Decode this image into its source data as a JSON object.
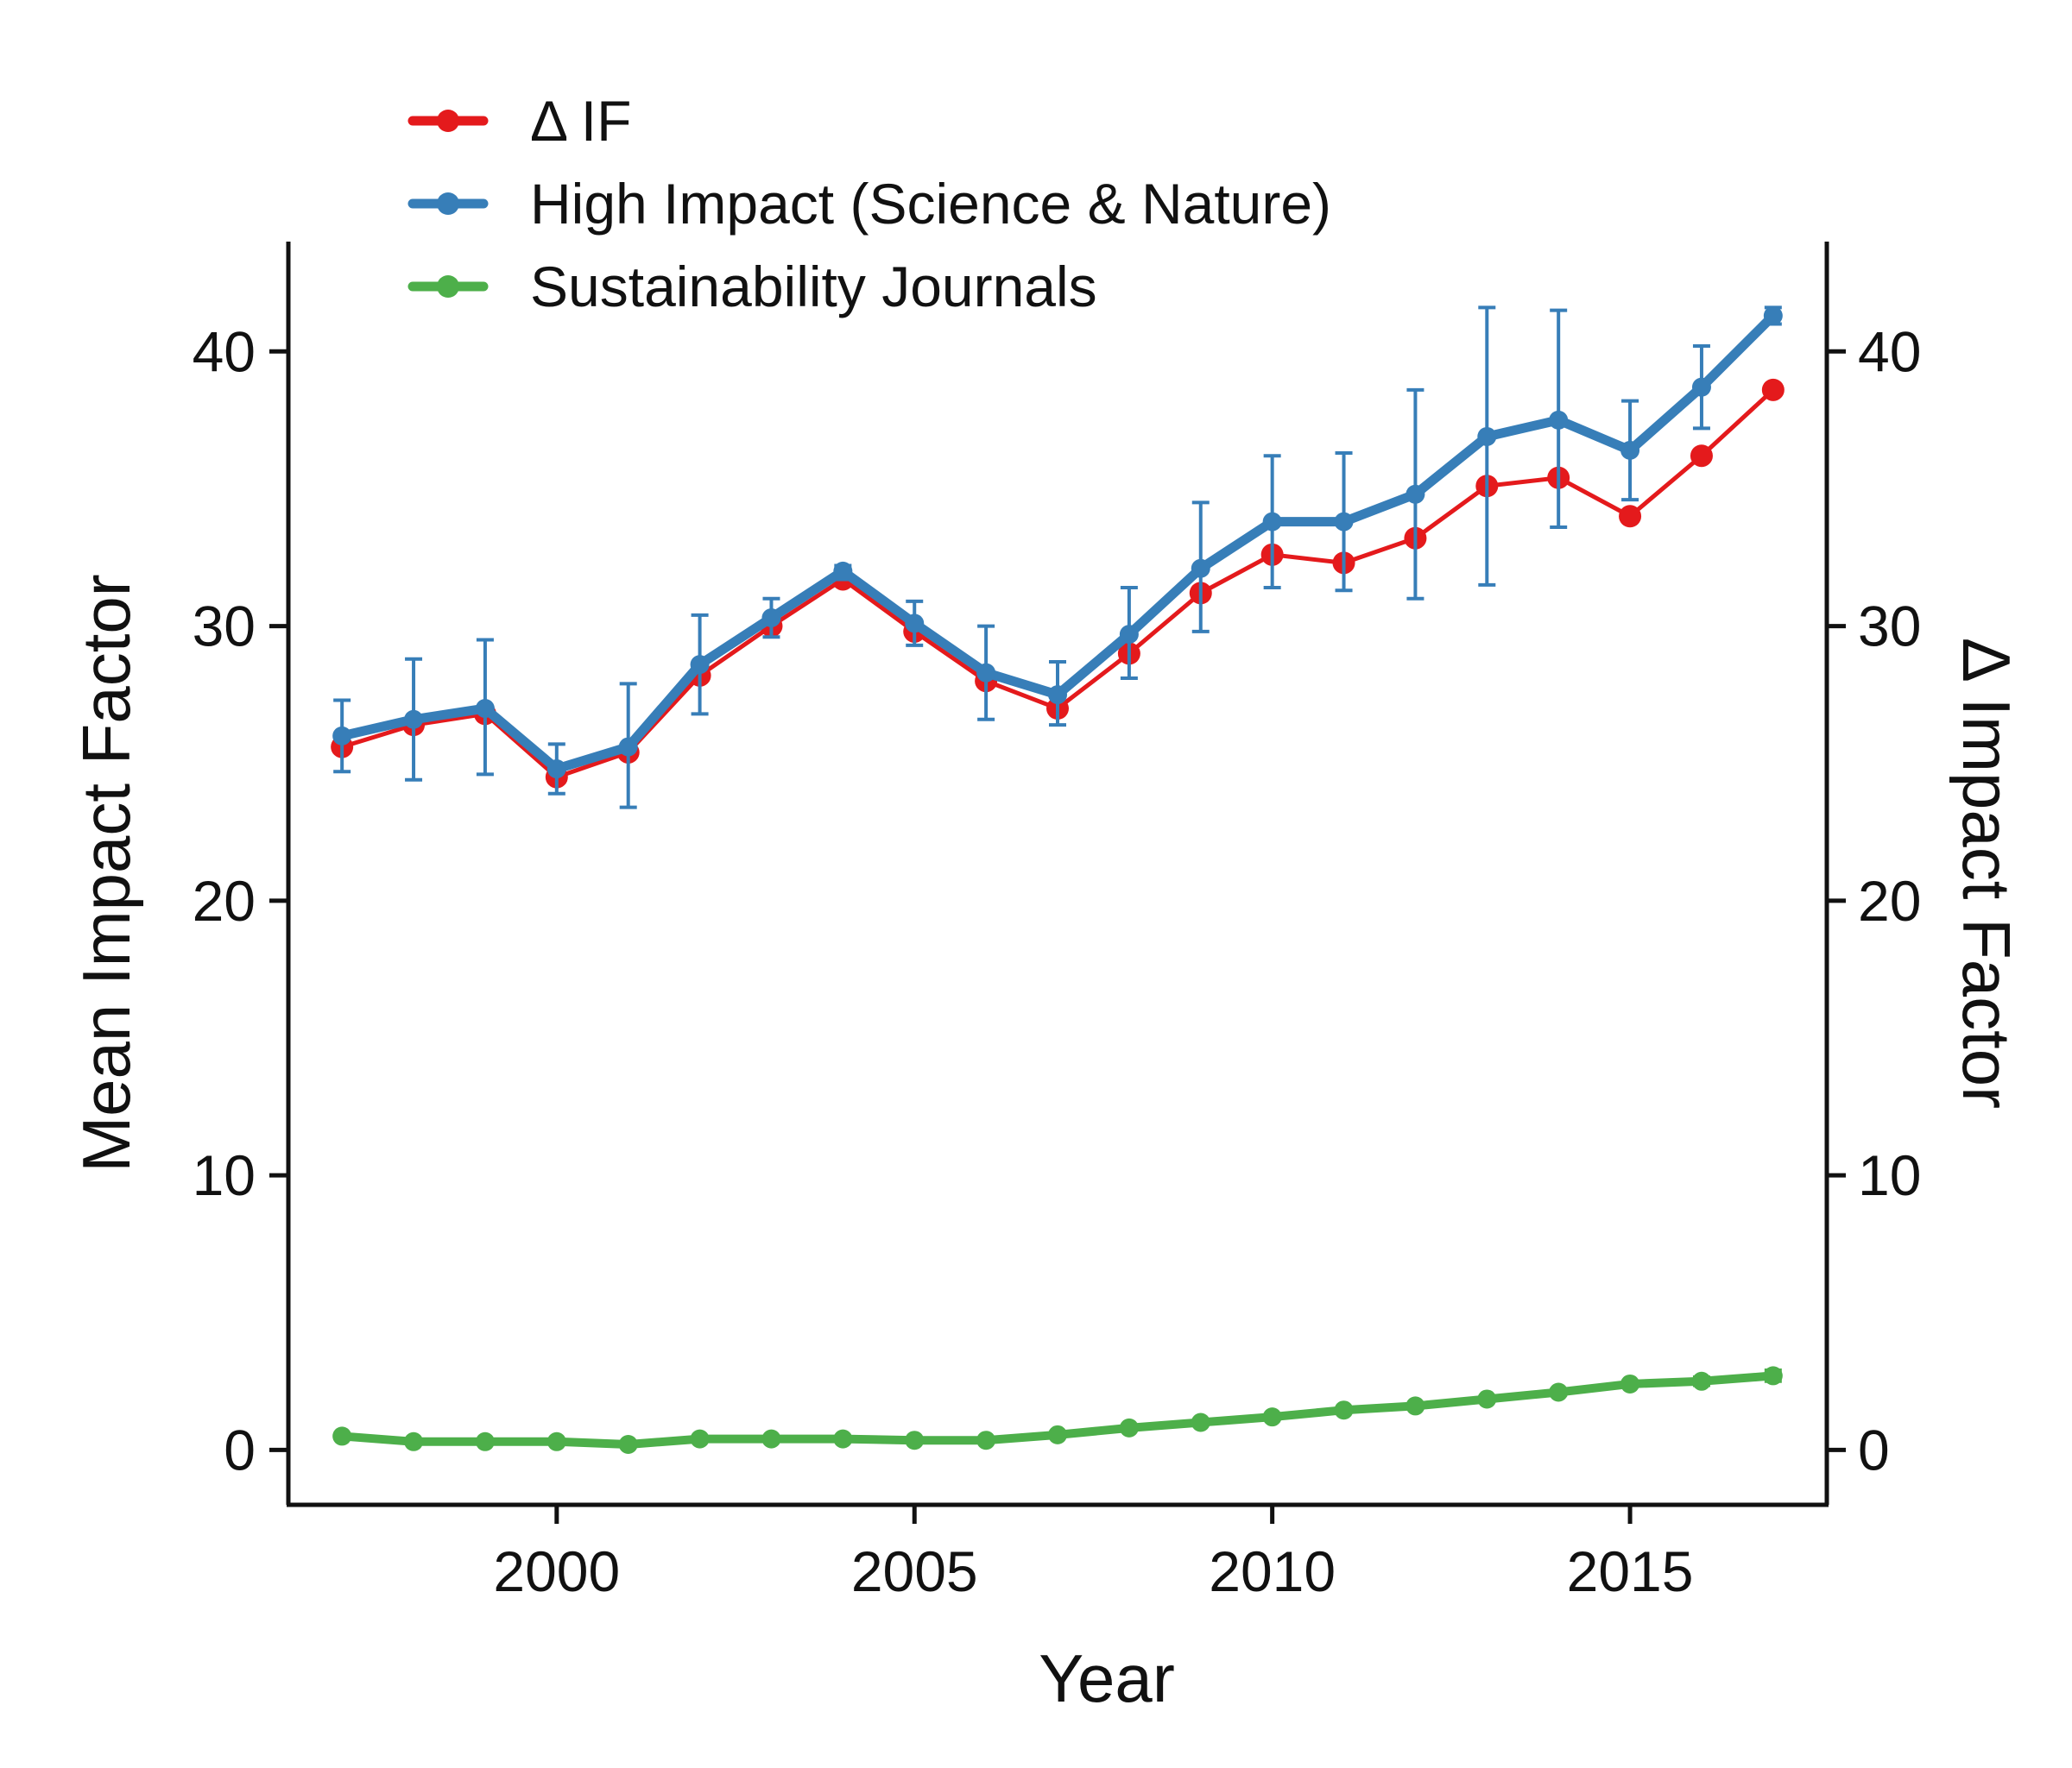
{
  "chart_data": {
    "type": "line",
    "xlabel": "Year",
    "ylabel_left": "Mean Impact Factor",
    "ylabel_right": "Δ Impact Factor",
    "xlim": [
      1996.25,
      2017.75
    ],
    "ylim": [
      -2,
      44
    ],
    "xticks": [
      2000,
      2005,
      2010,
      2015
    ],
    "yticks": [
      0,
      10,
      20,
      30,
      40
    ],
    "grid": false,
    "legend_position": "top-left",
    "x": [
      1997,
      1998,
      1999,
      2000,
      2001,
      2002,
      2003,
      2004,
      2005,
      2006,
      2007,
      2008,
      2009,
      2010,
      2011,
      2012,
      2013,
      2014,
      2015,
      2016,
      2017
    ],
    "series": [
      {
        "name": "Δ IF",
        "color": "#e41a1c",
        "values": [
          25.6,
          26.4,
          26.8,
          24.5,
          25.4,
          28.2,
          30.0,
          31.7,
          29.8,
          28.0,
          27.0,
          29.0,
          31.2,
          32.6,
          32.3,
          33.2,
          35.1,
          35.4,
          34.0,
          36.2,
          38.6
        ]
      },
      {
        "name": "High Impact (Science & Nature)",
        "color": "#377eb8",
        "values": [
          26.0,
          26.6,
          27.0,
          24.8,
          25.6,
          28.6,
          30.3,
          32.0,
          30.1,
          28.3,
          27.5,
          29.7,
          32.1,
          33.8,
          33.8,
          34.8,
          36.9,
          37.5,
          36.4,
          38.7,
          41.3
        ],
        "error_low": [
          24.7,
          24.4,
          24.6,
          23.9,
          23.4,
          26.8,
          29.6,
          31.7,
          29.3,
          26.6,
          26.4,
          28.1,
          29.8,
          31.4,
          31.3,
          31.0,
          31.5,
          33.6,
          34.6,
          37.2,
          41.0
        ],
        "error_high": [
          27.3,
          28.8,
          29.5,
          25.7,
          27.9,
          30.4,
          31.0,
          32.2,
          30.9,
          30.0,
          28.7,
          31.4,
          34.5,
          36.2,
          36.3,
          38.6,
          41.6,
          41.5,
          38.2,
          40.2,
          41.6
        ]
      },
      {
        "name": "Sustainability Journals",
        "color": "#4daf4a",
        "values": [
          0.5,
          0.3,
          0.3,
          0.3,
          0.2,
          0.4,
          0.4,
          0.4,
          0.35,
          0.35,
          0.55,
          0.8,
          1.0,
          1.2,
          1.45,
          1.6,
          1.85,
          2.1,
          2.4,
          2.5,
          2.7
        ],
        "error_low": [
          0.45,
          0.25,
          0.25,
          0.25,
          0.15,
          0.35,
          0.35,
          0.35,
          0.3,
          0.3,
          0.5,
          0.75,
          0.95,
          1.15,
          1.4,
          1.55,
          1.8,
          2.0,
          2.3,
          2.35,
          2.5
        ],
        "error_high": [
          0.55,
          0.35,
          0.35,
          0.35,
          0.25,
          0.45,
          0.45,
          0.45,
          0.4,
          0.4,
          0.6,
          0.85,
          1.05,
          1.25,
          1.5,
          1.65,
          1.9,
          2.2,
          2.5,
          2.65,
          2.9
        ]
      }
    ]
  }
}
